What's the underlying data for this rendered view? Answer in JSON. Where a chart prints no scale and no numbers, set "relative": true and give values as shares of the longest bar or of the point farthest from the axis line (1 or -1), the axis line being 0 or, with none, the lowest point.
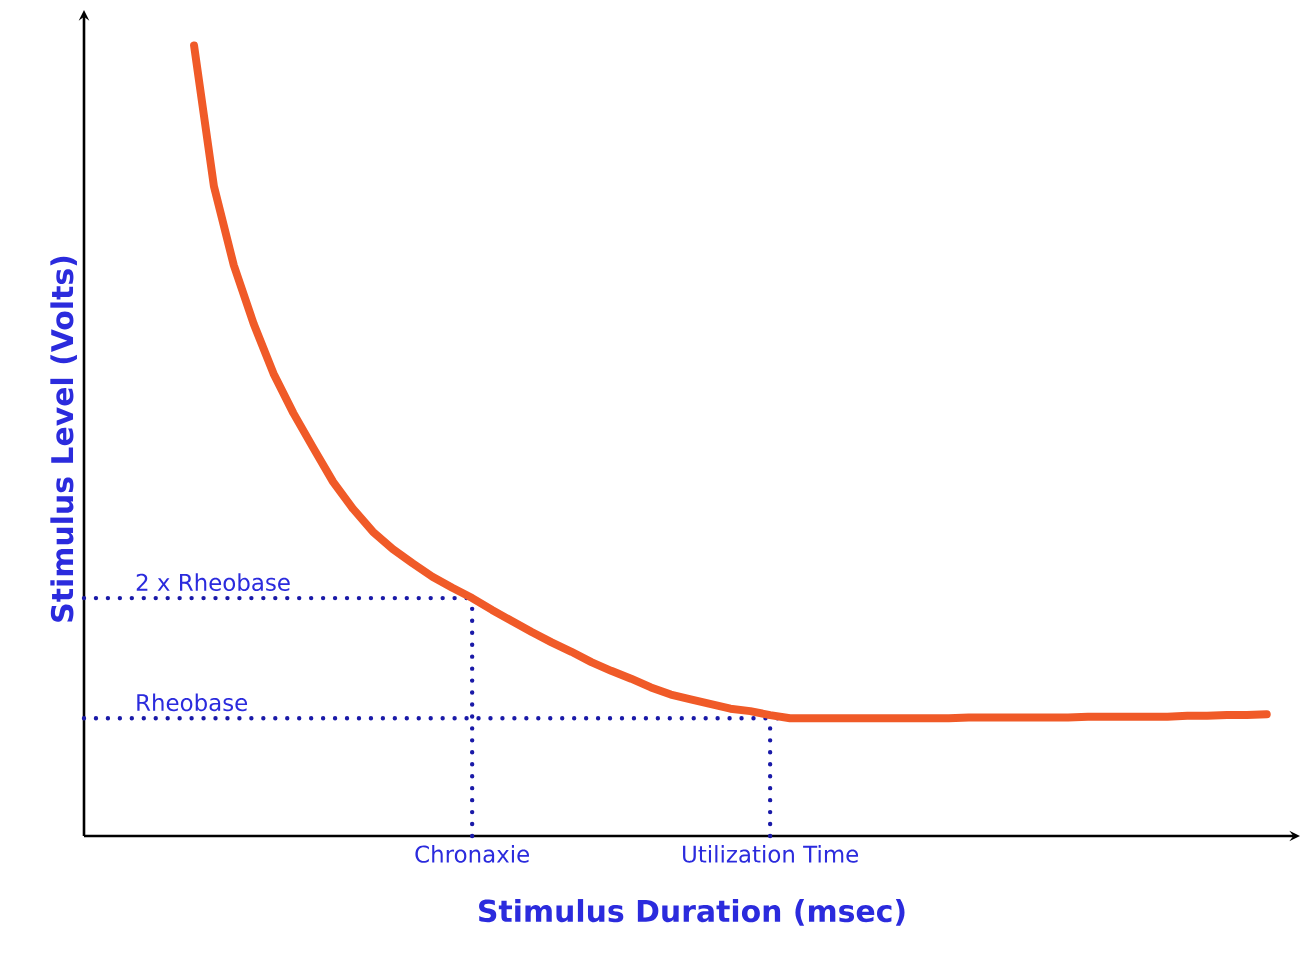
{
  "chart_data": {
    "type": "line",
    "relative": true,
    "xlabel": "Stimulus Duration (msec)",
    "ylabel": "Stimulus Level (Volts)",
    "categories": [
      null,
      null,
      null,
      null,
      null,
      null,
      null,
      null,
      null,
      null,
      null,
      null,
      null,
      null,
      "Chronaxie",
      null,
      null,
      null,
      null,
      null,
      null,
      null,
      null,
      null,
      null,
      null,
      null,
      null,
      null,
      "Utilization Time",
      null,
      null,
      null,
      null,
      null,
      null,
      null,
      null,
      null,
      null,
      null,
      null,
      null,
      null,
      null,
      null,
      null,
      null,
      null,
      null,
      null,
      null,
      null,
      null,
      null
    ],
    "series": [
      {
        "color": "#f05a28",
        "values": [
          1,
          0.822,
          0.722,
          0.648,
          0.585,
          0.535,
          0.491,
          0.448,
          0.414,
          0.385,
          0.363,
          0.345,
          0.328,
          0.314,
          0.301,
          0.286,
          0.272,
          0.258,
          0.245,
          0.233,
          0.22,
          0.209,
          0.199,
          0.188,
          0.179,
          0.173,
          0.167,
          0.161,
          0.158,
          0.153,
          0.149,
          0.149,
          0.149,
          0.149,
          0.149,
          0.149,
          0.149,
          0.149,
          0.149,
          0.15,
          0.15,
          0.15,
          0.15,
          0.15,
          0.15,
          0.151,
          0.151,
          0.151,
          0.151,
          0.151,
          0.152,
          0.152,
          0.153,
          0.153,
          0.154
        ]
      }
    ],
    "ref_lines": [
      {
        "axis": "y",
        "value": 0.301,
        "label": "2 x Rheobase",
        "color": "#1a1aa8",
        "line_style": "dotted"
      },
      {
        "axis": "y",
        "value": 0.149,
        "label": "Rheobase",
        "color": "#1a1aa8",
        "line_style": "dotted"
      },
      {
        "axis": "x",
        "value": "Chronaxie",
        "color": "#1a1aa8",
        "line_style": "dotted"
      },
      {
        "axis": "x",
        "value": "Utilization Time",
        "color": "#1a1aa8",
        "line_style": "dotted"
      }
    ]
  }
}
